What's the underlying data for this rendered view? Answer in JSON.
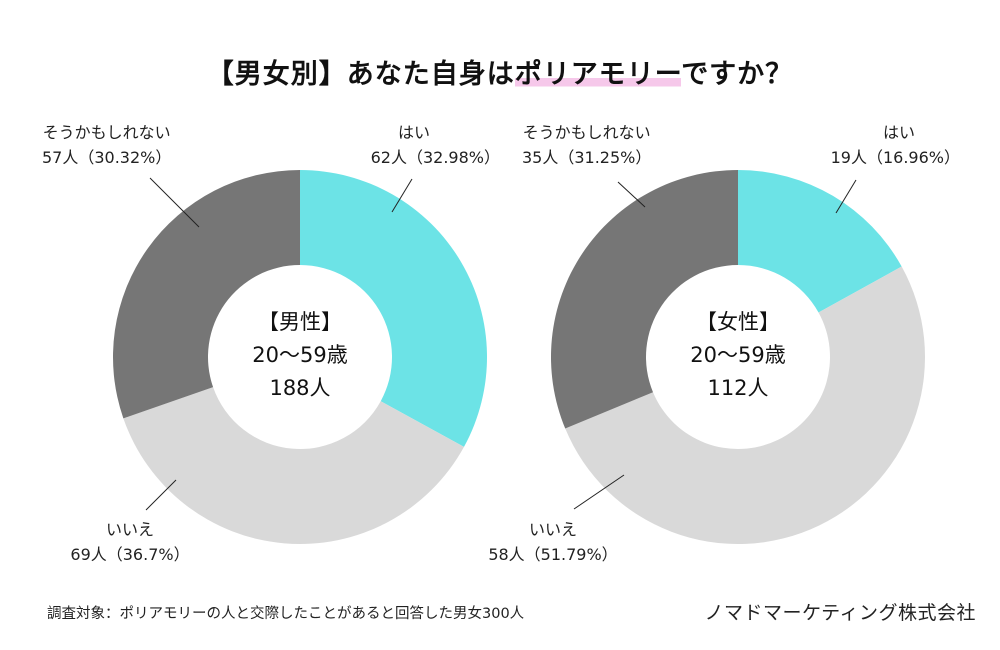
{
  "title": {
    "prefix": "【男女別】あなた自身は",
    "highlight": "ポリアモリー",
    "suffix": "ですか？",
    "highlight_color": "#f6c8ea"
  },
  "colors": {
    "yes": "#6ce3e6",
    "no": "#d9d9d9",
    "maybe": "#767676"
  },
  "chart_data": [
    {
      "type": "pie",
      "variant": "donut",
      "name": "male",
      "center_label": [
        "【男性】",
        "20〜59歳",
        "188人"
      ],
      "total": 188,
      "slices": [
        {
          "key": "yes",
          "label": "はい",
          "count": 62,
          "percent": 32.98,
          "text": "62人（32.98%）"
        },
        {
          "key": "no",
          "label": "いいえ",
          "count": 69,
          "percent": 36.7,
          "text": "69人（36.7%）"
        },
        {
          "key": "maybe",
          "label": "そうかもしれない",
          "count": 57,
          "percent": 30.32,
          "text": "57人（30.32%）"
        }
      ]
    },
    {
      "type": "pie",
      "variant": "donut",
      "name": "female",
      "center_label": [
        "【女性】",
        "20〜59歳",
        "112人"
      ],
      "total": 112,
      "slices": [
        {
          "key": "yes",
          "label": "はい",
          "count": 19,
          "percent": 16.96,
          "text": "19人（16.96%）"
        },
        {
          "key": "no",
          "label": "いいえ",
          "count": 58,
          "percent": 51.79,
          "text": "58人（51.79%）"
        },
        {
          "key": "maybe",
          "label": "そうかもしれない",
          "count": 35,
          "percent": 31.25,
          "text": "35人（31.25%）"
        }
      ]
    }
  ],
  "footer": {
    "note": "調査対象：ポリアモリーの人と交際したことがあると回答した男女300人",
    "company": "ノマドマーケティング株式会社"
  }
}
